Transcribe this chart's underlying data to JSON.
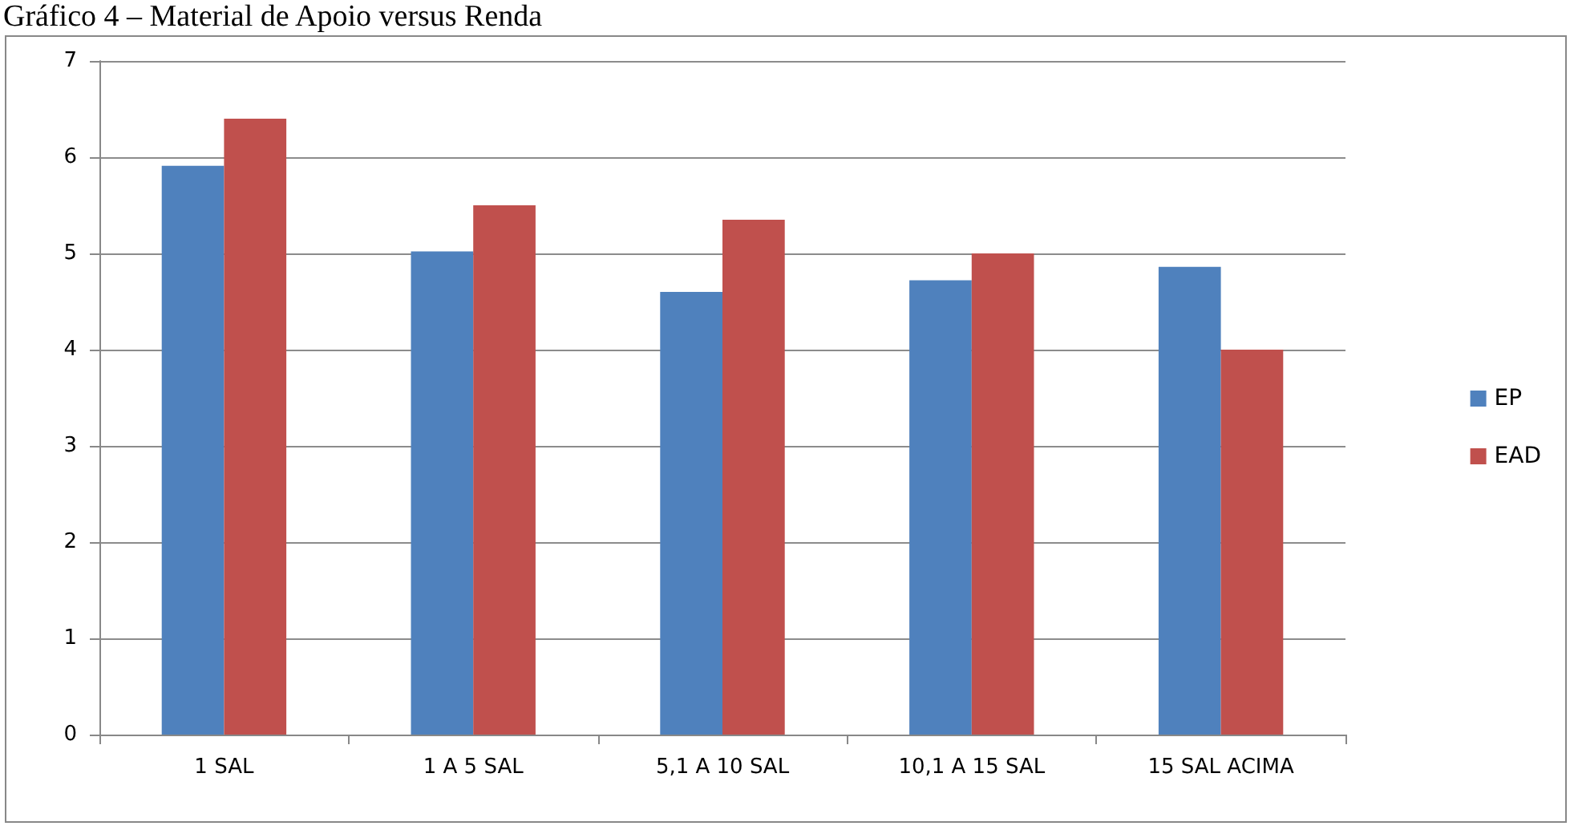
{
  "chart_data": {
    "type": "bar",
    "title": "Gráfico 4 – Material de Apoio versus Renda",
    "categories": [
      "1 SAL",
      "1 A 5 SAL",
      "5,1 A 10 SAL",
      "10,1 A 15 SAL",
      "15 SAL ACIMA"
    ],
    "series": [
      {
        "name": "EP",
        "color": "#4f81bd",
        "values": [
          5.91,
          5.02,
          4.6,
          4.72,
          4.86
        ]
      },
      {
        "name": "EAD",
        "color": "#c0504d",
        "values": [
          6.4,
          5.5,
          5.35,
          5.0,
          4.0
        ]
      }
    ],
    "ylim": [
      0,
      7
    ],
    "yticks": [
      0,
      1,
      2,
      3,
      4,
      5,
      6,
      7
    ],
    "grid": "y",
    "legend": "right"
  }
}
